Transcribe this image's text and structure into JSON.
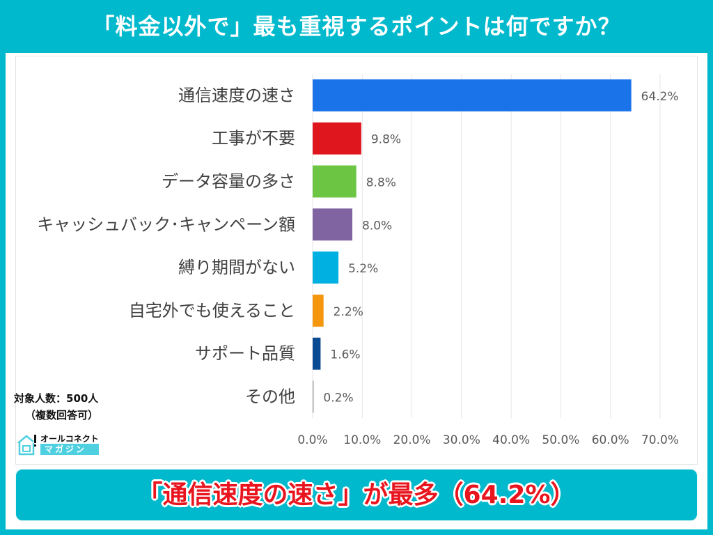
{
  "title": "「料金以外で」最も重視するポイントは何ですか？",
  "sample": {
    "line1": "対象人数：500人",
    "line2": "（複数回答可）"
  },
  "logo": {
    "line1": "オールコネクト",
    "line2": "マガジン"
  },
  "conclusion": "「通信速度の速さ」が最多（64.2%）",
  "chart_data": {
    "type": "bar",
    "orientation": "horizontal",
    "categories": [
      "通信速度の速さ",
      "工事が不要",
      "データ容量の多さ",
      "キャッシュバック･キャンペーン額",
      "縛り期間がない",
      "自宅外でも使えること",
      "サポート品質",
      "その他"
    ],
    "values": [
      64.2,
      9.8,
      8.8,
      8.0,
      5.2,
      2.2,
      1.6,
      0.2
    ],
    "value_labels": [
      "64.2%",
      "9.8%",
      "8.8%",
      "8.0%",
      "5.2%",
      "2.2%",
      "1.6%",
      "0.2%"
    ],
    "colors": [
      "#1a73e8",
      "#e0161e",
      "#6cc644",
      "#8064a2",
      "#00b0e0",
      "#f4970f",
      "#0a4a94",
      "#a0a0a0"
    ],
    "xlim": [
      0,
      70
    ],
    "x_ticks": [
      "0.0%",
      "10.0%",
      "20.0%",
      "30.0%",
      "40.0%",
      "50.0%",
      "60.0%",
      "70.0%"
    ],
    "grid": true,
    "xlabel": "",
    "ylabel": ""
  }
}
